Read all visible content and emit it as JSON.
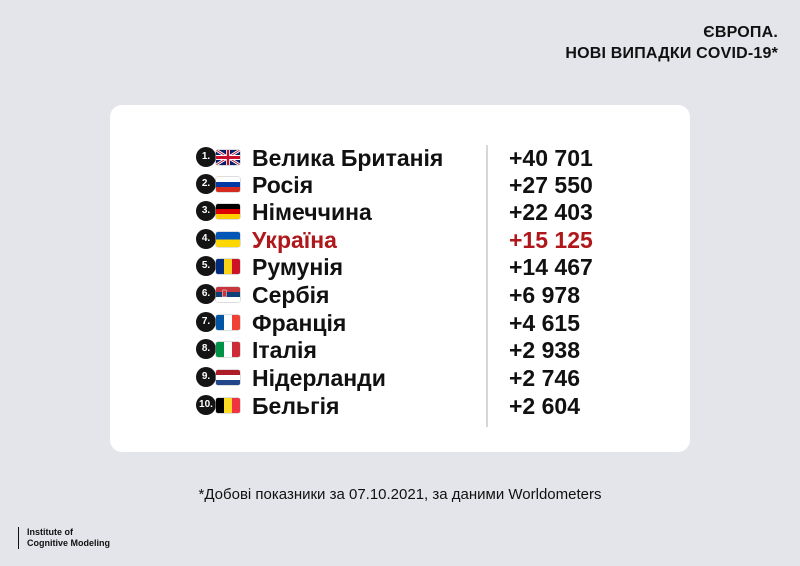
{
  "header": {
    "line1": "ЄВРОПА.",
    "line2": "НОВІ ВИПАДКИ COVID-19*"
  },
  "rows": [
    {
      "rank": "1.",
      "flag": "united-kingdom-flag",
      "country": "Велика Британія",
      "value": "+40 701"
    },
    {
      "rank": "2.",
      "flag": "russia-flag",
      "country": "Росія",
      "value": "+27 550"
    },
    {
      "rank": "3.",
      "flag": "germany-flag",
      "country": "Німеччина",
      "value": "+22 403"
    },
    {
      "rank": "4.",
      "flag": "ukraine-flag",
      "country": "Україна",
      "value": "+15 125"
    },
    {
      "rank": "5.",
      "flag": "romania-flag",
      "country": "Румунія",
      "value": "+14 467"
    },
    {
      "rank": "6.",
      "flag": "serbia-flag",
      "country": "Сербія",
      "value": "+6 978"
    },
    {
      "rank": "7.",
      "flag": "france-flag",
      "country": "Франція",
      "value": "+4 615"
    },
    {
      "rank": "8.",
      "flag": "italy-flag",
      "country": "Італія",
      "value": "+2 938"
    },
    {
      "rank": "9.",
      "flag": "netherlands-flag",
      "country": "Нідерланди",
      "value": "+2 746"
    },
    {
      "rank": "10.",
      "flag": "belgium-flag",
      "country": "Бельгія",
      "value": "+2 604"
    }
  ],
  "highlight_color": "#b0171a",
  "footnote": "*Добові показники за  07.10.2021, за даними Worldometers",
  "logo": {
    "line1": "Institute of",
    "line2": "Cognitive Modeling"
  }
}
